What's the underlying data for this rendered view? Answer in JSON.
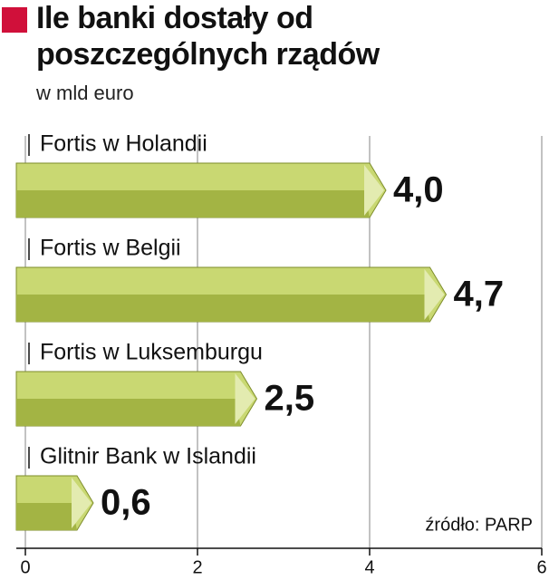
{
  "chart_data": {
    "type": "bar",
    "orientation": "horizontal",
    "title": "Ile banki dostały od poszczególnych rządów",
    "subtitle": "w mld euro",
    "categories": [
      "Fortis w Holandii",
      "Fortis w Belgii",
      "Fortis w Luksemburgu",
      "Glitnir Bank w Islandii"
    ],
    "values": [
      4.0,
      4.7,
      2.5,
      0.6
    ],
    "value_labels": [
      "4,0",
      "4,7",
      "2,5",
      "0,6"
    ],
    "color": "#c9d872",
    "xlim": [
      0,
      6
    ],
    "xticks": [
      0,
      2,
      4,
      6
    ],
    "grid": true,
    "source": "źródło: PARP"
  }
}
